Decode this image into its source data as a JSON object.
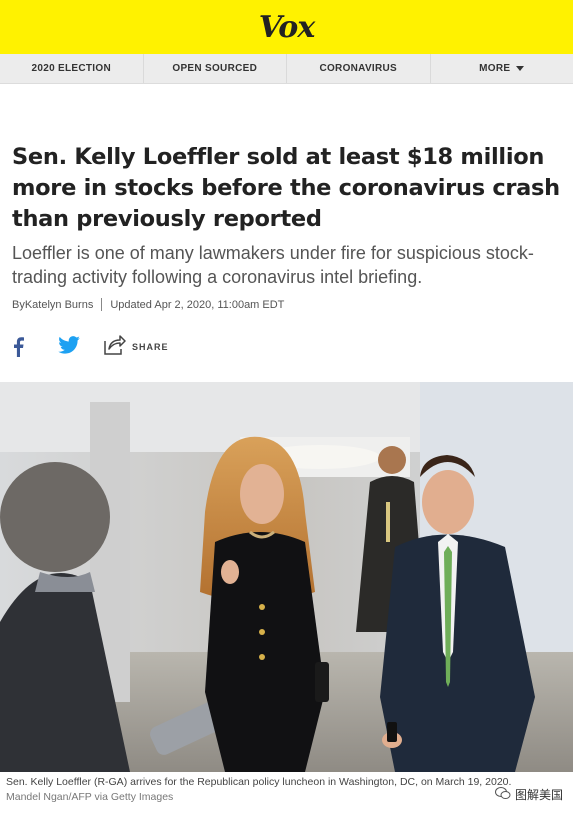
{
  "site": {
    "logo": "Vox"
  },
  "nav": {
    "items": [
      "2020 ELECTION",
      "OPEN SOURCED",
      "CORONAVIRUS"
    ],
    "more_label": "MORE"
  },
  "article": {
    "headline": "Sen. Kelly Loeffler sold at least $18 million more in stocks before the coronavirus crash than previously reported",
    "dek": "Loeffler is one of many lawmakers under fire for suspicious stock-trading activity following a coronavirus intel briefing.",
    "byline_prefix": "By ",
    "author": "Katelyn Burns",
    "updated": "Updated Apr 2, 2020, 11:00am EDT"
  },
  "social": {
    "share_label": "SHARE",
    "facebook_color": "#3b5998",
    "twitter_color": "#1da1f2"
  },
  "photo": {
    "caption": "Sen. Kelly Loeffler (R-GA) arrives for the Republican policy luncheon in Washington, DC, on March 19, 2020.",
    "credit": "Mandel Ngan/AFP via Getty Images"
  },
  "watermark": {
    "text": "图解美国"
  },
  "colors": {
    "brand_yellow": "#fff200",
    "nav_bg": "#ececec"
  }
}
